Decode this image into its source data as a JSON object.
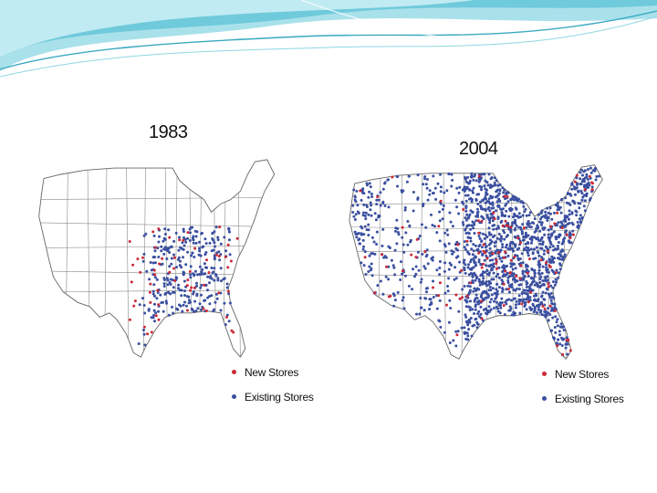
{
  "banner": {
    "colors": [
      "#c9eef4",
      "#8fd6e3",
      "#57bcd0",
      "#2c9fb8"
    ]
  },
  "legend": {
    "new_label": "New Stores",
    "existing_label": "Existing Stores",
    "new_color": "#cc2a36",
    "existing_color": "#3a4fa0"
  },
  "maps": [
    {
      "id": "1983",
      "year": "1983",
      "new_count": 60,
      "existing_count": 300
    },
    {
      "id": "2004",
      "year": "2004",
      "new_count": 110,
      "existing_count": 1600
    }
  ]
}
